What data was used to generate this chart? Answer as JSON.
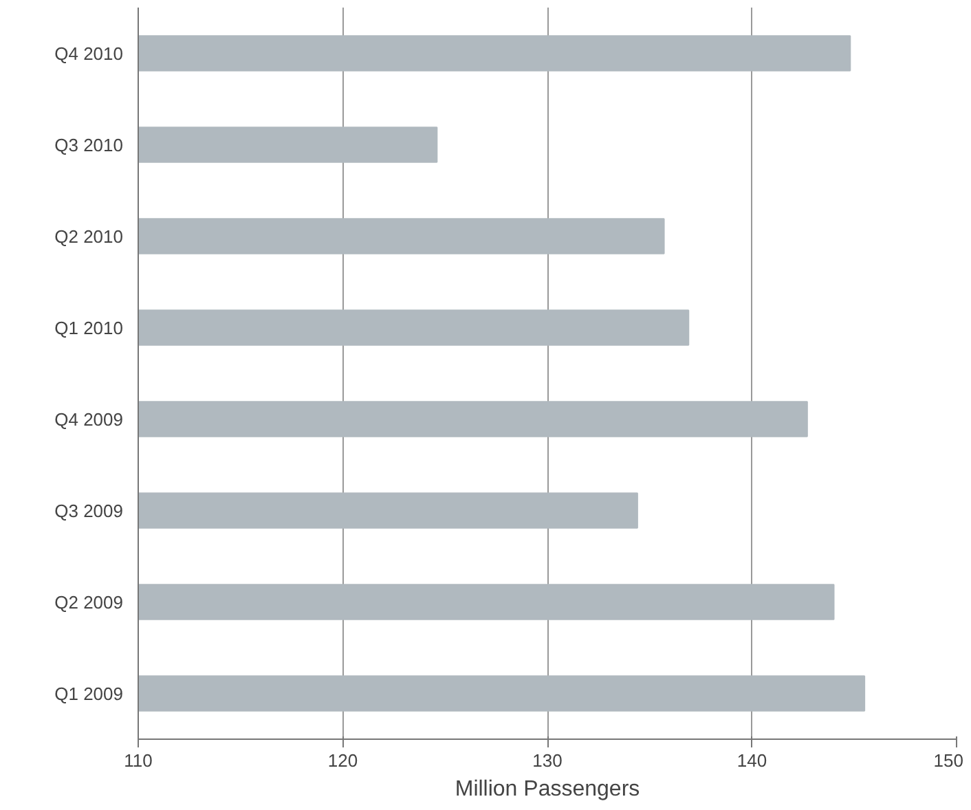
{
  "chart_data": {
    "type": "bar",
    "orientation": "horizontal",
    "xlabel": "Million Passengers",
    "categories": [
      "Q4 2010",
      "Q3 2010",
      "Q2 2010",
      "Q1 2010",
      "Q4 2009",
      "Q3 2009",
      "Q2 2009",
      "Q1 2009"
    ],
    "values": [
      144.8,
      124.6,
      135.7,
      136.9,
      142.7,
      134.4,
      144.0,
      145.5
    ],
    "color": "#b0b9bf",
    "xlim": [
      110,
      150
    ],
    "xticks": [
      110,
      120,
      130,
      140,
      150
    ],
    "grid": "x"
  }
}
